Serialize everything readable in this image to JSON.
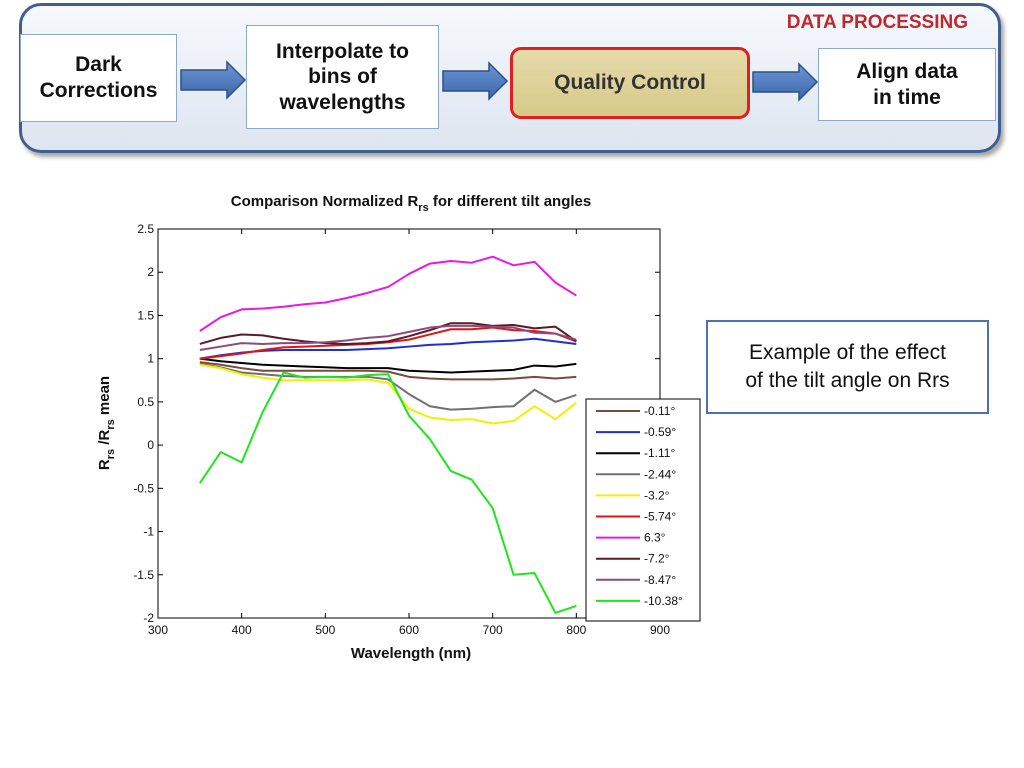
{
  "header": {
    "section_label": "DATA PROCESSING",
    "steps": [
      {
        "label": "Dark\nCorrections"
      },
      {
        "label": "Interpolate to\nbins of\nwavelengths"
      },
      {
        "label": "Quality Control"
      },
      {
        "label": "Align data\nin time"
      }
    ]
  },
  "note": {
    "text": "Example of the effect\nof the tilt angle on Rrs"
  },
  "chart_data": {
    "type": "line",
    "title": "Comparison Normalized R",
    "title_sub": "rs",
    "title_end": " for different tilt angles",
    "xlabel": "Wavelength (nm)",
    "ylabel_parts": {
      "r1": "R",
      "s1": "rs",
      "mid": " /R",
      "s2": "rs",
      "end": " mean"
    },
    "xlim": [
      300,
      900
    ],
    "ylim": [
      -2,
      2.5
    ],
    "x_ticks": [
      "300",
      "400",
      "500",
      "600",
      "700",
      "800",
      "900"
    ],
    "y_ticks": [
      "2.5",
      "2",
      "1.5",
      "1",
      "0.5",
      "0",
      "-0.5",
      "-1",
      "-1.5",
      "-2"
    ],
    "legend_position": "bottom-right",
    "x": [
      350,
      375,
      400,
      425,
      450,
      475,
      500,
      525,
      550,
      575,
      600,
      625,
      650,
      675,
      700,
      725,
      750,
      775,
      800
    ],
    "series": [
      {
        "name": "-0.11°",
        "color": "#7a4a3a",
        "values": [
          0.96,
          0.93,
          0.89,
          0.86,
          0.86,
          0.86,
          0.86,
          0.86,
          0.86,
          0.85,
          0.79,
          0.77,
          0.76,
          0.76,
          0.76,
          0.77,
          0.79,
          0.77,
          0.79
        ]
      },
      {
        "name": "-0.59°",
        "color": "#1f2fd0",
        "values": [
          1.0,
          1.04,
          1.07,
          1.09,
          1.1,
          1.1,
          1.1,
          1.1,
          1.11,
          1.12,
          1.14,
          1.16,
          1.17,
          1.19,
          1.2,
          1.21,
          1.23,
          1.2,
          1.17
        ]
      },
      {
        "name": "-1.11°",
        "color": "#000000",
        "values": [
          1.0,
          0.97,
          0.95,
          0.93,
          0.92,
          0.91,
          0.9,
          0.89,
          0.89,
          0.89,
          0.86,
          0.85,
          0.84,
          0.85,
          0.86,
          0.87,
          0.92,
          0.91,
          0.94
        ]
      },
      {
        "name": "-2.44°",
        "color": "#707070",
        "values": [
          0.94,
          0.9,
          0.84,
          0.82,
          0.8,
          0.79,
          0.79,
          0.79,
          0.79,
          0.76,
          0.59,
          0.45,
          0.41,
          0.42,
          0.44,
          0.45,
          0.64,
          0.5,
          0.58
        ]
      },
      {
        "name": "-3.2°",
        "color": "#f0f000",
        "values": [
          0.93,
          0.89,
          0.82,
          0.78,
          0.75,
          0.75,
          0.75,
          0.75,
          0.76,
          0.72,
          0.42,
          0.32,
          0.29,
          0.3,
          0.25,
          0.28,
          0.45,
          0.3,
          0.49
        ]
      },
      {
        "name": "-5.74°",
        "color": "#e01515",
        "values": [
          1.0,
          1.03,
          1.06,
          1.1,
          1.13,
          1.14,
          1.15,
          1.16,
          1.17,
          1.19,
          1.22,
          1.28,
          1.34,
          1.34,
          1.36,
          1.33,
          1.32,
          1.29,
          1.2
        ]
      },
      {
        "name": "6.3°",
        "color": "#ea18e6",
        "values": [
          1.32,
          1.48,
          1.57,
          1.58,
          1.6,
          1.63,
          1.65,
          1.7,
          1.76,
          1.83,
          1.98,
          2.1,
          2.13,
          2.11,
          2.18,
          2.08,
          2.12,
          1.88,
          1.73
        ]
      },
      {
        "name": "-7.2°",
        "color": "#5a1a26",
        "values": [
          1.17,
          1.24,
          1.28,
          1.27,
          1.23,
          1.2,
          1.18,
          1.17,
          1.18,
          1.2,
          1.26,
          1.33,
          1.41,
          1.41,
          1.38,
          1.39,
          1.35,
          1.37,
          1.2
        ]
      },
      {
        "name": "-8.47°",
        "color": "#8c4a7e",
        "values": [
          1.1,
          1.14,
          1.18,
          1.17,
          1.18,
          1.18,
          1.19,
          1.21,
          1.24,
          1.26,
          1.31,
          1.36,
          1.38,
          1.38,
          1.37,
          1.36,
          1.3,
          1.29,
          1.22
        ]
      },
      {
        "name": "-10.38°",
        "color": "#1ee51e",
        "values": [
          -0.44,
          -0.08,
          -0.2,
          0.38,
          0.84,
          0.78,
          0.79,
          0.78,
          0.81,
          0.82,
          0.34,
          0.07,
          -0.3,
          -0.4,
          -0.73,
          -1.5,
          -1.48,
          -1.94,
          -1.86
        ]
      }
    ]
  }
}
